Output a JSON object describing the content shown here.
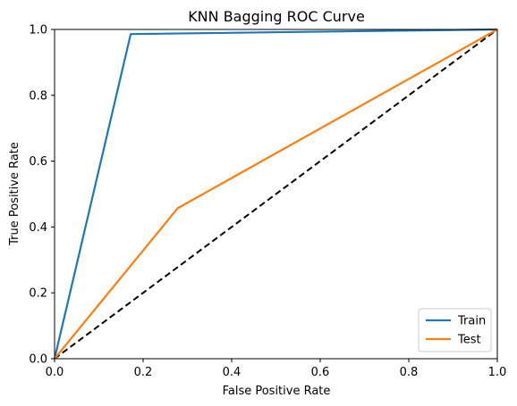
{
  "chart_data": {
    "type": "line",
    "title": "KNN Bagging ROC Curve",
    "xlabel": "False Positive Rate",
    "ylabel": "True Positive Rate",
    "xlim": [
      0.0,
      1.0
    ],
    "ylim": [
      0.0,
      1.0
    ],
    "xticks": [
      "0.0",
      "0.2",
      "0.4",
      "0.6",
      "0.8",
      "1.0"
    ],
    "yticks": [
      "0.0",
      "0.2",
      "0.4",
      "0.6",
      "0.8",
      "1.0"
    ],
    "grid": false,
    "legend_position": "lower-right",
    "series": [
      {
        "name": "Train",
        "color": "#1f77b4",
        "x": [
          0.0,
          0.172,
          1.0
        ],
        "y": [
          0.0,
          0.986,
          1.0
        ]
      },
      {
        "name": "Test",
        "color": "#ff7f0e",
        "x": [
          0.0,
          0.278,
          1.0
        ],
        "y": [
          0.0,
          0.457,
          1.0
        ]
      }
    ],
    "reference_line": {
      "color": "#000000",
      "style": "dashed",
      "x": [
        0.0,
        1.0
      ],
      "y": [
        0.0,
        1.0
      ]
    }
  }
}
